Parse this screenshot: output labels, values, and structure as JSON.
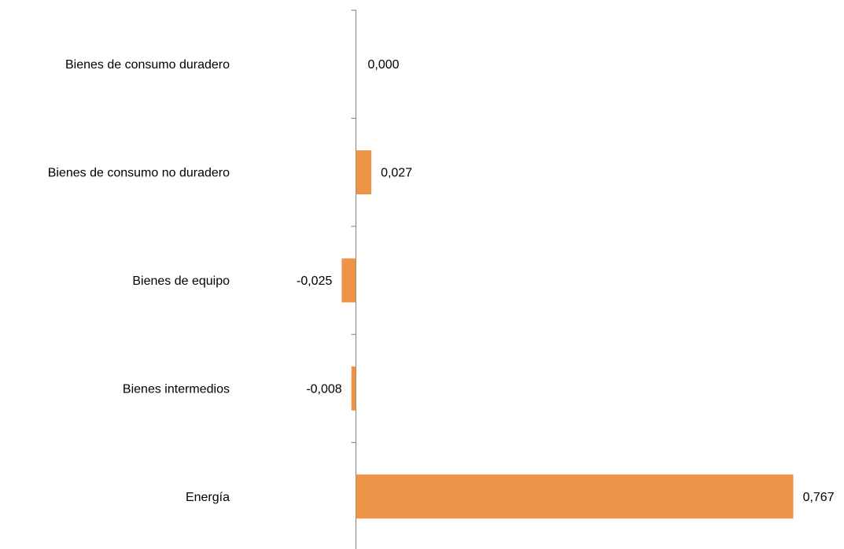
{
  "chart_data": {
    "type": "bar",
    "orientation": "horizontal",
    "categories": [
      "Bienes de consumo duradero",
      "Bienes de consumo no duradero",
      "Bienes de equipo",
      "Bienes intermedios",
      "Energía"
    ],
    "values": [
      0.0,
      0.027,
      -0.025,
      -0.008,
      0.767
    ],
    "data_labels": [
      "0,000",
      "0,027",
      "-0,025",
      "-0,008",
      "0,767"
    ],
    "title": "",
    "xlabel": "",
    "ylabel": "",
    "legend": "none",
    "grid": false,
    "bar_color": "#ED9448",
    "axis_color": "#7F7F7F"
  }
}
